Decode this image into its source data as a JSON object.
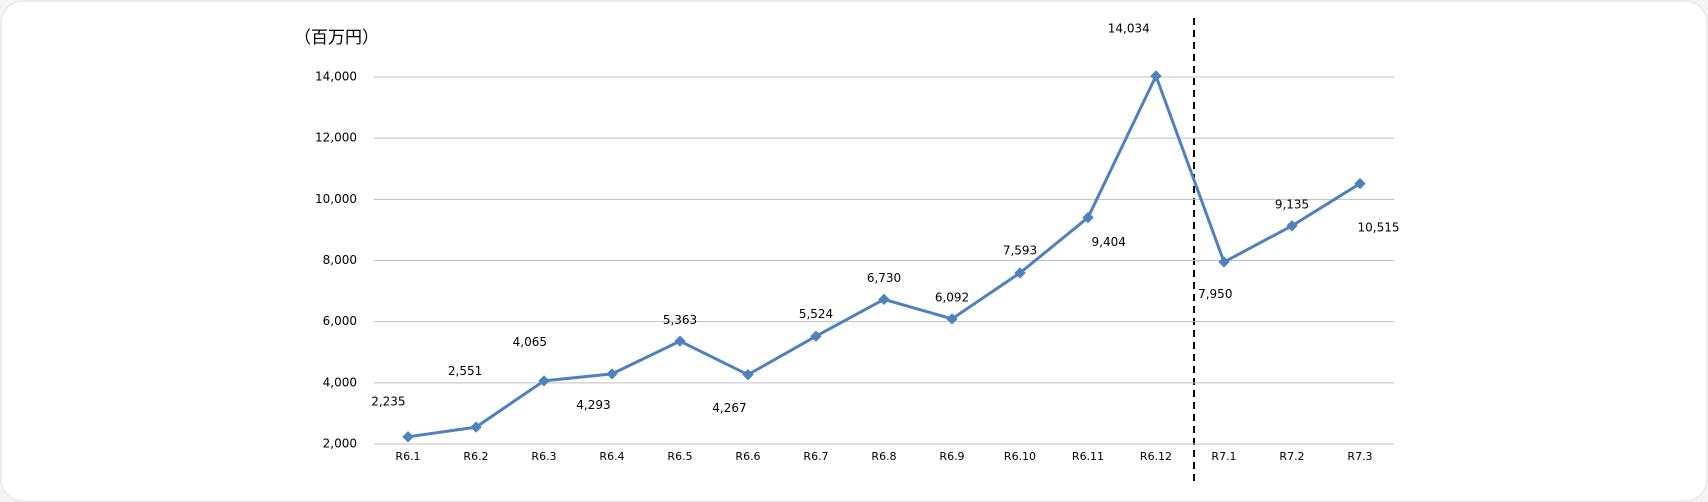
{
  "chart_data": {
    "type": "line",
    "unit_label": "（百万円）",
    "categories": [
      "R6.1",
      "R6.2",
      "R6.3",
      "R6.4",
      "R6.5",
      "R6.6",
      "R6.7",
      "R6.8",
      "R6.9",
      "R6.10",
      "R6.11",
      "R6.12",
      "R7.1",
      "R7.2",
      "R7.3"
    ],
    "series": [
      {
        "color": "#4f81bd",
        "values": [
          2235,
          2551,
          4065,
          4293,
          5363,
          4267,
          5524,
          6730,
          6092,
          7593,
          9404,
          14034,
          7950,
          9135,
          10515
        ],
        "value_labels": [
          "2,235",
          "2,551",
          "4,065",
          "4,293",
          "5,363",
          "4,267",
          "5,524",
          "6,730",
          "6,092",
          "7,593",
          "9,404",
          "14,034",
          "7,950",
          "9,135",
          "10,515"
        ]
      }
    ],
    "ylim": [
      2000,
      14000
    ],
    "yticks": [
      {
        "value": 2000,
        "label": "2,000"
      },
      {
        "value": 4000,
        "label": "4,000"
      },
      {
        "value": 6000,
        "label": "6,000"
      },
      {
        "value": 8000,
        "label": "8,000"
      },
      {
        "value": 10000,
        "label": "10,000"
      },
      {
        "value": 12000,
        "label": "12,000"
      },
      {
        "value": 14000,
        "label": "14,000"
      }
    ],
    "grid": true
  }
}
